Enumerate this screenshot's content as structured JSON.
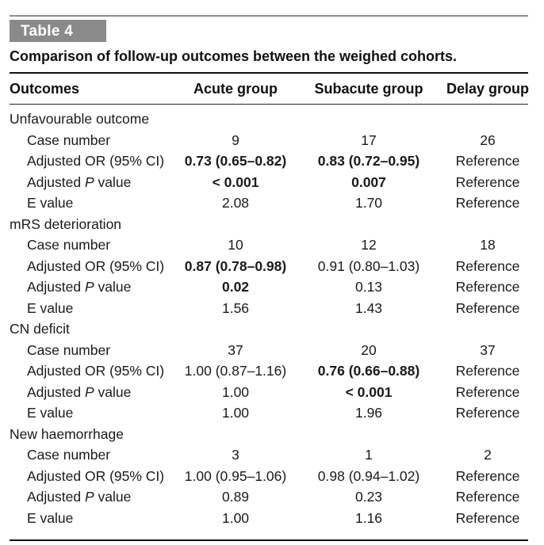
{
  "badge": "Table 4",
  "title": "Comparison of follow-up outcomes between the weighed cohorts.",
  "headers": {
    "outcomes": "Outcomes",
    "acute": "Acute group",
    "subacute": "Subacute group",
    "delay": "Delay group"
  },
  "row_labels": {
    "case": "Case number",
    "or": "Adjusted OR (95% CI)",
    "p_prefix": "Adjusted ",
    "p_italic": "P",
    "p_suffix": " value",
    "e": "E value"
  },
  "sections": [
    {
      "name": "Unfavourable outcome",
      "case": [
        "9",
        "17",
        "26"
      ],
      "or": [
        "0.73 (0.65–0.82)",
        "0.83 (0.72–0.95)",
        "Reference"
      ],
      "p": [
        "< 0.001",
        "0.007",
        "Reference"
      ],
      "e": [
        "2.08",
        "1.70",
        "Reference"
      ]
    },
    {
      "name": "mRS deterioration",
      "case": [
        "10",
        "12",
        "18"
      ],
      "or": [
        "0.87 (0.78–0.98)",
        "0.91 (0.80–1.03)",
        "Reference"
      ],
      "p": [
        "0.02",
        "0.13",
        "Reference"
      ],
      "e": [
        "1.56",
        "1.43",
        "Reference"
      ]
    },
    {
      "name": "CN deficit",
      "case": [
        "37",
        "20",
        "37"
      ],
      "or": [
        "1.00 (0.87–1.16)",
        "0.76 (0.66–0.88)",
        "Reference"
      ],
      "p": [
        "1.00",
        "< 0.001",
        "Reference"
      ],
      "e": [
        "1.00",
        "1.96",
        "Reference"
      ]
    },
    {
      "name": "New haemorrhage",
      "case": [
        "3",
        "1",
        "2"
      ],
      "or": [
        "1.00 (0.95–1.06)",
        "0.98 (0.94–1.02)",
        "Reference"
      ],
      "p": [
        "0.89",
        "0.23",
        "Reference"
      ],
      "e": [
        "1.00",
        "1.16",
        "Reference"
      ]
    }
  ]
}
